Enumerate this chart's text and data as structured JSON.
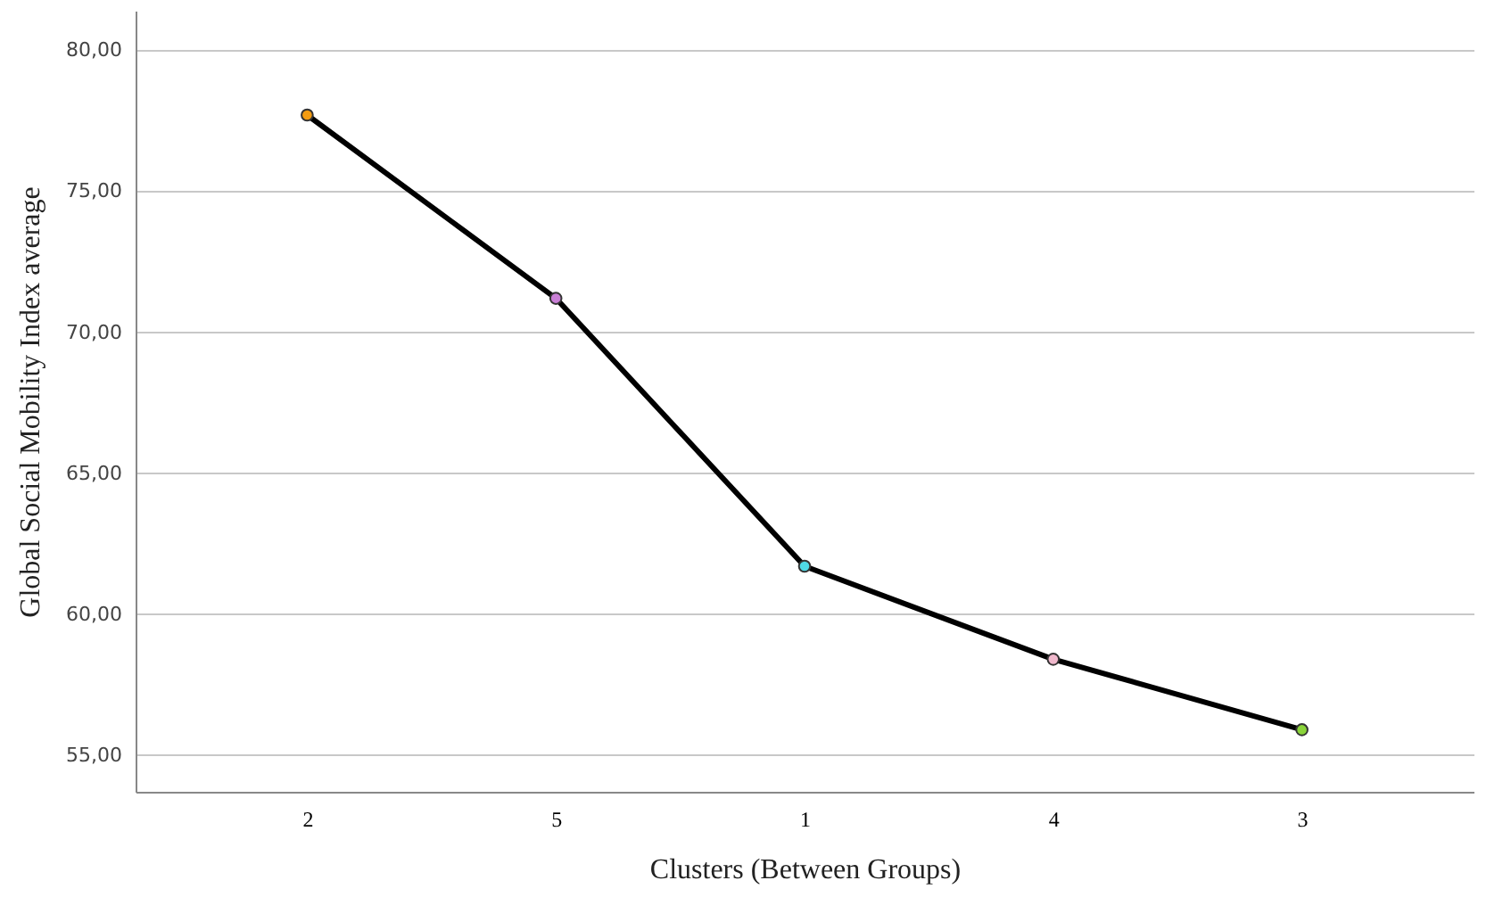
{
  "chart_data": {
    "type": "line",
    "xlabel": "Clusters (Between Groups)",
    "ylabel": "Global Social Mobility Index average",
    "categories": [
      "2",
      "5",
      "1",
      "4",
      "3"
    ],
    "values": [
      77.7,
      71.2,
      61.7,
      58.4,
      55.9
    ],
    "color": "#000000",
    "colors": [
      "#f39c12",
      "#c97fd6",
      "#4fd9e6",
      "#f0b8cc",
      "#8ad43a"
    ],
    "ylim": [
      53.7,
      81.4
    ],
    "yticks": [
      {
        "value": 55,
        "label": "55,00"
      },
      {
        "value": 60,
        "label": "60,00"
      },
      {
        "value": 65,
        "label": "65,00"
      },
      {
        "value": 70,
        "label": "70,00"
      },
      {
        "value": 75,
        "label": "75,00"
      },
      {
        "value": 80,
        "label": "80,00"
      }
    ],
    "grid": "y",
    "marker": "circle",
    "line_style": "solid"
  }
}
